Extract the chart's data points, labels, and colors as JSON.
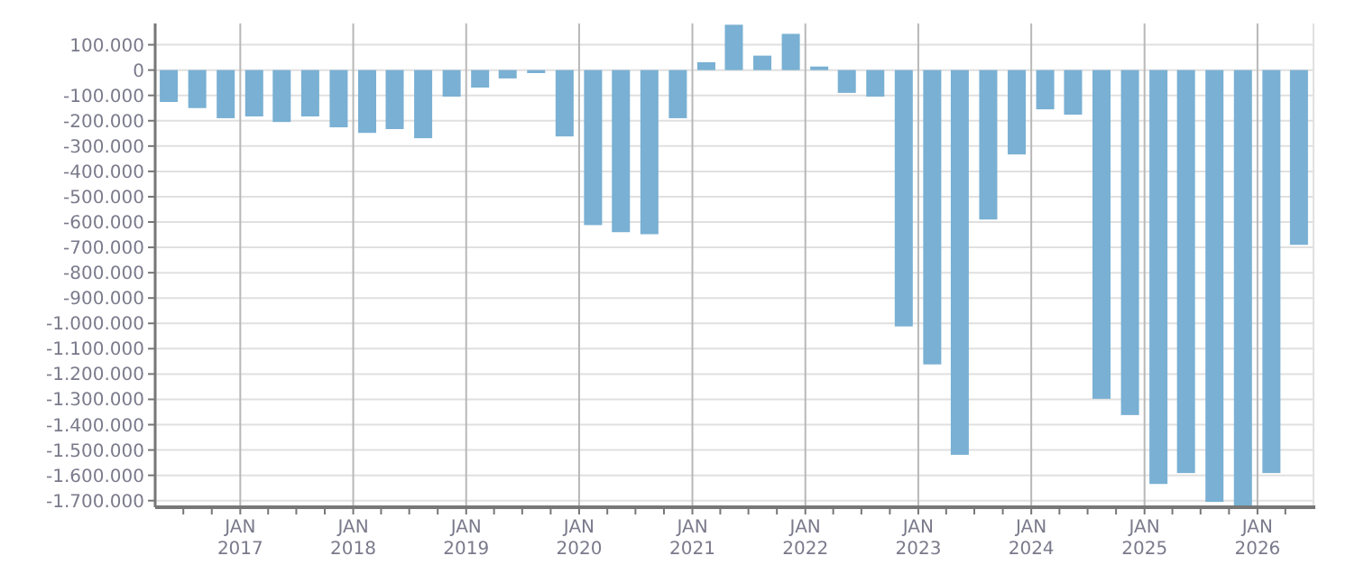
{
  "chart_data": {
    "type": "bar",
    "x": [
      "2016-05-15",
      "2016-08-15",
      "2016-11-15",
      "2017-02-15",
      "2017-05-15",
      "2017-08-15",
      "2017-11-15",
      "2018-02-15",
      "2018-05-15",
      "2018-08-15",
      "2018-11-15",
      "2019-02-15",
      "2019-05-15",
      "2019-08-15",
      "2019-11-15",
      "2020-02-15",
      "2020-05-15",
      "2020-08-15",
      "2020-11-15",
      "2021-02-15",
      "2021-05-15",
      "2021-08-15",
      "2021-11-15",
      "2022-02-15",
      "2022-05-15",
      "2022-08-15",
      "2022-11-15",
      "2023-02-15",
      "2023-05-15",
      "2023-08-15",
      "2023-11-15",
      "2024-02-15",
      "2024-05-15",
      "2024-08-15",
      "2024-11-15",
      "2025-02-15",
      "2025-05-15",
      "2025-08-15",
      "2025-11-15",
      "2026-02-15",
      "2026-05-15"
    ],
    "values": [
      -126000,
      -150000,
      -190000,
      -183000,
      -205000,
      -183000,
      -226000,
      -248000,
      -233000,
      -269000,
      -105000,
      -69000,
      -33000,
      -12000,
      -262000,
      -612000,
      -640000,
      -648000,
      -190000,
      31000,
      179000,
      57000,
      143000,
      14000,
      -90000,
      -105000,
      -1012000,
      -1162000,
      -1519000,
      -590000,
      -333000,
      -155000,
      -176000,
      -1298000,
      -1362000,
      -1634000,
      -1591000,
      -1705000,
      -1720000,
      -1591000,
      -690000
    ],
    "color": "#79b0d3",
    "xlim": [
      "2016-04-01",
      "2026-07-01"
    ],
    "xticks": [
      {
        "value": "2016-07-01",
        "label": null
      },
      {
        "value": "2016-10-01",
        "label": null
      },
      {
        "value": "2017-01-01",
        "label": "JAN\n2017"
      },
      {
        "value": "2017-04-01",
        "label": null
      },
      {
        "value": "2017-07-01",
        "label": null
      },
      {
        "value": "2017-10-01",
        "label": null
      },
      {
        "value": "2018-01-01",
        "label": "JAN\n2018"
      },
      {
        "value": "2018-04-01",
        "label": null
      },
      {
        "value": "2018-07-01",
        "label": null
      },
      {
        "value": "2018-10-01",
        "label": null
      },
      {
        "value": "2019-01-01",
        "label": "JAN\n2019"
      },
      {
        "value": "2019-04-01",
        "label": null
      },
      {
        "value": "2019-07-01",
        "label": null
      },
      {
        "value": "2019-10-01",
        "label": null
      },
      {
        "value": "2020-01-01",
        "label": "JAN\n2020"
      },
      {
        "value": "2020-04-01",
        "label": null
      },
      {
        "value": "2020-07-01",
        "label": null
      },
      {
        "value": "2020-10-01",
        "label": null
      },
      {
        "value": "2021-01-01",
        "label": "JAN\n2021"
      },
      {
        "value": "2021-04-01",
        "label": null
      },
      {
        "value": "2021-07-01",
        "label": null
      },
      {
        "value": "2021-10-01",
        "label": null
      },
      {
        "value": "2022-01-01",
        "label": "JAN\n2022"
      },
      {
        "value": "2022-04-01",
        "label": null
      },
      {
        "value": "2022-07-01",
        "label": null
      },
      {
        "value": "2022-10-01",
        "label": null
      },
      {
        "value": "2023-01-01",
        "label": "JAN\n2023"
      },
      {
        "value": "2023-04-01",
        "label": null
      },
      {
        "value": "2023-07-01",
        "label": null
      },
      {
        "value": "2023-10-01",
        "label": null
      },
      {
        "value": "2024-01-01",
        "label": "JAN\n2024"
      },
      {
        "value": "2024-04-01",
        "label": null
      },
      {
        "value": "2024-07-01",
        "label": null
      },
      {
        "value": "2024-10-01",
        "label": null
      },
      {
        "value": "2025-01-01",
        "label": "JAN\n2025"
      },
      {
        "value": "2025-04-01",
        "label": null
      },
      {
        "value": "2025-07-01",
        "label": null
      },
      {
        "value": "2025-10-01",
        "label": null
      },
      {
        "value": "2026-01-01",
        "label": "JAN\n2026"
      },
      {
        "value": "2026-04-01",
        "label": null
      }
    ],
    "ylim": [
      -1726000,
      184000
    ],
    "yticks": [
      {
        "value": 100000,
        "label": "100.000"
      },
      0,
      {
        "value": -100000,
        "label": "-100.000"
      },
      {
        "value": -200000,
        "label": "-200.000"
      },
      {
        "value": -300000,
        "label": "-300.000"
      },
      {
        "value": -400000,
        "label": "-400.000"
      },
      {
        "value": -500000,
        "label": "-500.000"
      },
      {
        "value": -600000,
        "label": "-600.000"
      },
      {
        "value": -700000,
        "label": "-700.000"
      },
      {
        "value": -800000,
        "label": "-800.000"
      },
      {
        "value": -900000,
        "label": "-900.000"
      },
      {
        "value": -1000000,
        "label": "-1.000.000"
      },
      {
        "value": -1100000,
        "label": "-1.100.000"
      },
      {
        "value": -1200000,
        "label": "-1.200.000"
      },
      {
        "value": -1300000,
        "label": "-1.300.000"
      },
      {
        "value": -1400000,
        "label": "-1.400.000"
      },
      {
        "value": -1500000,
        "label": "-1.500.000"
      },
      {
        "value": -1600000,
        "label": "-1.600.000"
      },
      {
        "value": -1700000,
        "label": "-1.700.000"
      }
    ],
    "grid": true
  }
}
